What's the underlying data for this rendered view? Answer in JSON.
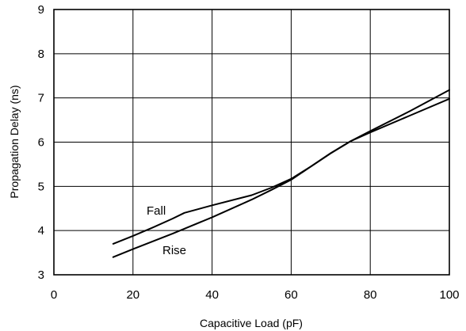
{
  "chart_data": {
    "type": "line",
    "title": "",
    "xlabel": "Capacitive Load (pF)",
    "ylabel": "Propagation Delay (ns)",
    "xlim": [
      0,
      100
    ],
    "ylim": [
      3,
      9
    ],
    "xticks": [
      0,
      20,
      40,
      60,
      80,
      100
    ],
    "yticks": [
      3,
      4,
      5,
      6,
      7,
      8,
      9
    ],
    "grid": true,
    "legend": "none",
    "series": [
      {
        "name": "Fall",
        "x": [
          15,
          20,
          25,
          30,
          33,
          40,
          50,
          55,
          60,
          65,
          70,
          75,
          80,
          90,
          100
        ],
        "y": [
          3.7,
          3.88,
          4.07,
          4.27,
          4.4,
          4.57,
          4.8,
          4.97,
          5.17,
          5.45,
          5.75,
          6.02,
          6.22,
          6.6,
          6.98
        ]
      },
      {
        "name": "Rise",
        "x": [
          15,
          20,
          30,
          40,
          50,
          55,
          60,
          65,
          70,
          75,
          80,
          90,
          100
        ],
        "y": [
          3.4,
          3.58,
          3.93,
          4.3,
          4.7,
          4.92,
          5.15,
          5.45,
          5.75,
          6.02,
          6.25,
          6.7,
          7.18
        ]
      }
    ]
  }
}
